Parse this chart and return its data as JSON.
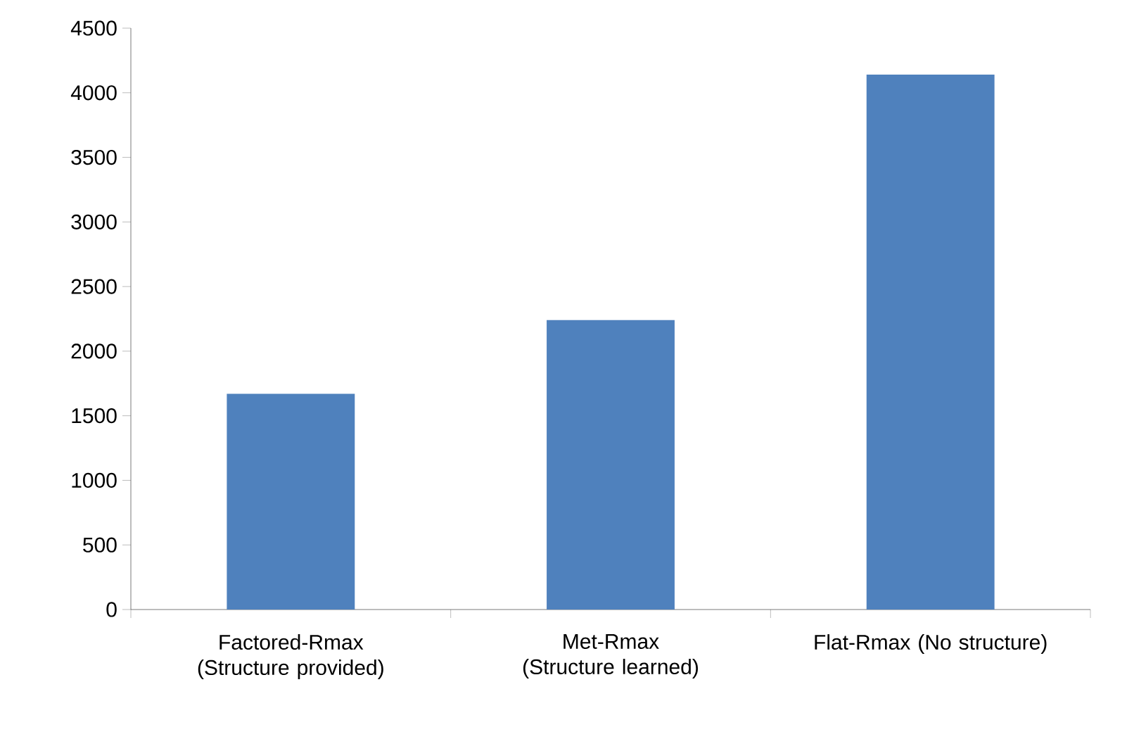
{
  "chart_data": {
    "type": "bar",
    "categories": [
      "Factored-Rmax (Structure provided)",
      "Met-Rmax (Structure learned)",
      "Flat-Rmax (No structure)"
    ],
    "values": [
      1670,
      2240,
      4140
    ],
    "color": "#4f81bd",
    "ylim": [
      0,
      4500
    ],
    "yticks": [
      0,
      500,
      1000,
      1500,
      2000,
      2500,
      3000,
      3500,
      4000,
      4500
    ]
  }
}
